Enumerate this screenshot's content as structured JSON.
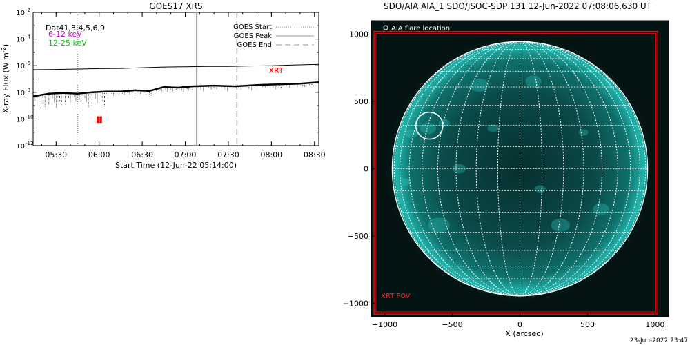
{
  "chart_data": [
    {
      "type": "line",
      "title": "GOES17 XRS",
      "xlabel": "Start Time (12-Jun-22 05:14:00)",
      "ylabel": "X-ray Flux (W m",
      "ylabel_sup": "-2",
      "ylabel_close": ")",
      "y_scale": "log",
      "ylim_exp": [
        -12,
        -2
      ],
      "y_ticks": [
        {
          "exp": -12,
          "label": "10",
          "sup": "-12"
        },
        {
          "exp": -10,
          "label": "10",
          "sup": "-10"
        },
        {
          "exp": -8,
          "label": "10",
          "sup": "-8"
        },
        {
          "exp": -6,
          "label": "10",
          "sup": "-6"
        },
        {
          "exp": -4,
          "label": "10",
          "sup": "-4"
        },
        {
          "exp": -2,
          "label": "10",
          "sup": "-2"
        }
      ],
      "xlim_min": [
        314,
        513
      ],
      "x_ticks": [
        {
          "min": 330,
          "label": "05:30"
        },
        {
          "min": 360,
          "label": "06:00"
        },
        {
          "min": 390,
          "label": "06:30"
        },
        {
          "min": 420,
          "label": "07:00"
        },
        {
          "min": 450,
          "label": "07:30"
        },
        {
          "min": 480,
          "label": "08:00"
        },
        {
          "min": 510,
          "label": "08:30"
        }
      ],
      "channel_label": "Dat41,3,4,5,6,9",
      "series": [
        {
          "name": "6-12 keV",
          "color": "#d000d0",
          "x": [
            314,
            330,
            345,
            360,
            375,
            390,
            405,
            420,
            435,
            450,
            465,
            480,
            495,
            513
          ],
          "log_flux": [
            -6.3,
            -6.28,
            -6.25,
            -6.22,
            -6.2,
            -6.15,
            -6.1,
            -6.08,
            -6.05,
            -6.05,
            -6.02,
            -6.0,
            -5.95,
            -5.9
          ]
        },
        {
          "name": "12-25 keV",
          "color": "#00c000",
          "x": [
            314,
            325,
            335,
            345,
            355,
            365,
            375,
            385,
            395,
            405,
            415,
            425,
            440,
            455,
            470,
            485,
            500,
            513
          ],
          "log_flux": [
            -8.3,
            -8.1,
            -8.05,
            -8.1,
            -8.0,
            -7.95,
            -7.95,
            -7.85,
            -7.9,
            -7.6,
            -7.65,
            -7.55,
            -7.5,
            -7.55,
            -7.45,
            -7.4,
            -7.35,
            -7.25
          ]
        }
      ],
      "markers": [
        {
          "name": "GOES Start",
          "min": 345,
          "style": "dotted",
          "color": "#999999"
        },
        {
          "name": "GOES Peak",
          "min": 428,
          "style": "solid",
          "color": "#999999"
        },
        {
          "name": "GOES End",
          "min": 456,
          "style": "dashed",
          "color": "#999999"
        }
      ],
      "xrt_label": "XRT",
      "xrt_color": "#ff0000",
      "xrt_bars": [
        {
          "min": 359
        },
        {
          "min": 361
        }
      ]
    },
    {
      "type": "image",
      "title": "SDO/AIA AIA_1 SDO/JSOC-SDP 131 12-Jun-2022 07:08:06.630 UT",
      "xlabel": "X (arcsec)",
      "ylabel": "",
      "xlim": [
        -1100,
        1100
      ],
      "ylim": [
        -1100,
        1100
      ],
      "x_ticks": [
        -1000,
        -500,
        0,
        500,
        1000
      ],
      "y_ticks": [
        -1000,
        -500,
        0,
        500,
        1000
      ],
      "legend": "AIA flare location",
      "flare_location": {
        "x": -670,
        "y": 320,
        "r": 100
      },
      "sun_radius_arcsec": 945,
      "xrt_fov_label": "XRT FOV",
      "xrt_fov_color": "#ff0000",
      "xrt_fov": {
        "x0": -1100,
        "x1": 1020,
        "y0": -1080,
        "y1": 1020
      },
      "disk_color": "#0a8f88",
      "timestamp": "23-Jun-2022 23:47"
    }
  ]
}
